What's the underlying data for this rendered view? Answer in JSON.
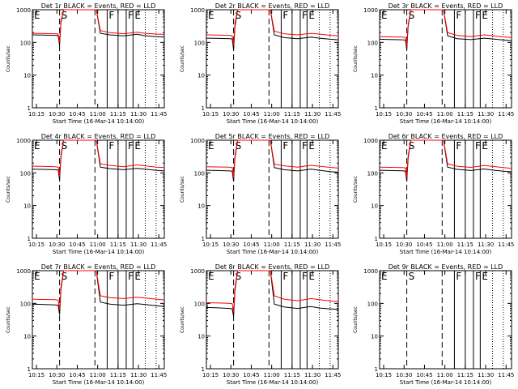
{
  "figure": {
    "ylabel": "Counts/sec",
    "xlabel": "Start Time (16-Mar-14 10:14:00)"
  },
  "time_axis": {
    "xlim": [
      13,
      110
    ],
    "tick_minutes": [
      16,
      31,
      46,
      61,
      76,
      91,
      106
    ],
    "tick_labels": [
      "10:15",
      "10:30",
      "10:45",
      "11:00",
      "11:15",
      "11:30",
      "11:45"
    ]
  },
  "log_axis": {
    "ylim": [
      1,
      1000
    ],
    "tick_values": [
      1,
      10,
      100,
      1000
    ],
    "tick_labels": [
      "1",
      "10",
      "100",
      "1000"
    ]
  },
  "markers": [
    {
      "label": "E",
      "t": 13,
      "style": "dotted"
    },
    {
      "label": "S",
      "t": 33,
      "style": "dashed"
    },
    {
      "label": "",
      "t": 59,
      "style": "dashed"
    },
    {
      "label": "F",
      "t": 68,
      "style": "solid"
    },
    {
      "label": "",
      "t": 76,
      "style": "solid"
    },
    {
      "label": "F",
      "t": 82,
      "style": "solid"
    },
    {
      "label": "E",
      "t": 87,
      "style": "solid"
    },
    {
      "label": "",
      "t": 96,
      "style": "dotted"
    },
    {
      "label": "",
      "t": 104,
      "style": "dotted"
    }
  ],
  "colors": {
    "events": "#000000",
    "lld": "#ff0000"
  },
  "chart_data": [
    {
      "type": "line",
      "title": "Det 1r BLACK = Events, RED = LLD",
      "xlabel": "Start Time (16-Mar-14 10:14:00)",
      "ylabel": "Counts/sec",
      "yscale": "log",
      "ylim": [
        1,
        1000
      ],
      "series": [
        {
          "name": "Events",
          "x": [
            13,
            20,
            30,
            32,
            33,
            34,
            36,
            60,
            63,
            70,
            80,
            90,
            96,
            104,
            110
          ],
          "y": [
            170,
            168,
            165,
            160,
            80,
            400,
            1000,
            1000,
            190,
            170,
            158,
            178,
            160,
            150,
            145
          ]
        },
        {
          "name": "LLD",
          "x": [
            13,
            20,
            30,
            32,
            33,
            34,
            36,
            60,
            63,
            70,
            80,
            90,
            96,
            104,
            110
          ],
          "y": [
            190,
            188,
            185,
            180,
            100,
            450,
            1000,
            1000,
            230,
            200,
            185,
            205,
            190,
            180,
            175
          ]
        }
      ]
    },
    {
      "type": "line",
      "title": "Det 2r BLACK = Events, RED = LLD",
      "xlabel": "Start Time (16-Mar-14 10:14:00)",
      "ylabel": "Counts/sec",
      "yscale": "log",
      "ylim": [
        1,
        1000
      ],
      "series": [
        {
          "name": "Events",
          "x": [
            13,
            20,
            30,
            32,
            33,
            34,
            36,
            60,
            63,
            70,
            80,
            90,
            96,
            104,
            110
          ],
          "y": [
            135,
            133,
            130,
            128,
            60,
            300,
            1000,
            1000,
            170,
            140,
            130,
            145,
            135,
            125,
            120
          ]
        },
        {
          "name": "LLD",
          "x": [
            13,
            20,
            30,
            32,
            33,
            34,
            36,
            60,
            63,
            70,
            80,
            90,
            96,
            104,
            110
          ],
          "y": [
            170,
            168,
            165,
            160,
            80,
            380,
            1000,
            1000,
            220,
            185,
            170,
            190,
            180,
            165,
            160
          ]
        }
      ]
    },
    {
      "type": "line",
      "title": "Det 3r BLACK = Events, RED = LLD",
      "xlabel": "Start Time (16-Mar-14 10:14:00)",
      "ylabel": "Counts/sec",
      "yscale": "log",
      "ylim": [
        1,
        1000
      ],
      "series": [
        {
          "name": "Events",
          "x": [
            13,
            20,
            30,
            32,
            33,
            34,
            36,
            60,
            63,
            70,
            80,
            90,
            96,
            104,
            110
          ],
          "y": [
            125,
            123,
            120,
            118,
            60,
            320,
            1000,
            1000,
            160,
            130,
            122,
            135,
            128,
            118,
            112
          ]
        },
        {
          "name": "LLD",
          "x": [
            13,
            20,
            30,
            32,
            33,
            34,
            36,
            60,
            63,
            70,
            80,
            90,
            96,
            104,
            110
          ],
          "y": [
            150,
            148,
            145,
            140,
            75,
            360,
            1000,
            1000,
            200,
            165,
            150,
            170,
            160,
            148,
            140
          ]
        }
      ]
    },
    {
      "type": "line",
      "title": "Det 4r BLACK = Events, RED = LLD",
      "xlabel": "Start Time (16-Mar-14 10:14:00)",
      "ylabel": "Counts/sec",
      "yscale": "log",
      "ylim": [
        1,
        1000
      ],
      "series": [
        {
          "name": "Events",
          "x": [
            13,
            20,
            30,
            32,
            33,
            34,
            36,
            60,
            63,
            70,
            80,
            90,
            96,
            104,
            110
          ],
          "y": [
            130,
            128,
            125,
            122,
            60,
            300,
            1000,
            1000,
            150,
            135,
            125,
            138,
            130,
            120,
            115
          ]
        },
        {
          "name": "LLD",
          "x": [
            13,
            20,
            30,
            32,
            33,
            34,
            36,
            60,
            63,
            70,
            80,
            90,
            96,
            104,
            110
          ],
          "y": [
            160,
            158,
            155,
            150,
            75,
            350,
            1000,
            1000,
            190,
            170,
            155,
            175,
            165,
            150,
            145
          ]
        }
      ]
    },
    {
      "type": "line",
      "title": "Det 5r BLACK = Events, RED = LLD",
      "xlabel": "Start Time (16-Mar-14 10:14:00)",
      "ylabel": "Counts/sec",
      "yscale": "log",
      "ylim": [
        1,
        1000
      ],
      "series": [
        {
          "name": "Events",
          "x": [
            13,
            20,
            30,
            32,
            33,
            34,
            36,
            60,
            63,
            70,
            80,
            90,
            96,
            104,
            110
          ],
          "y": [
            120,
            118,
            115,
            112,
            55,
            290,
            1000,
            1000,
            145,
            125,
            115,
            130,
            120,
            110,
            105
          ]
        },
        {
          "name": "LLD",
          "x": [
            13,
            20,
            30,
            32,
            33,
            34,
            36,
            60,
            63,
            70,
            80,
            90,
            96,
            104,
            110
          ],
          "y": [
            155,
            152,
            150,
            145,
            70,
            340,
            1000,
            1000,
            185,
            165,
            150,
            170,
            160,
            148,
            140
          ]
        }
      ]
    },
    {
      "type": "line",
      "title": "Det 6r BLACK = Events, RED = LLD",
      "xlabel": "Start Time (16-Mar-14 10:14:00)",
      "ylabel": "Counts/sec",
      "yscale": "log",
      "ylim": [
        1,
        1000
      ],
      "series": [
        {
          "name": "Events",
          "x": [
            13,
            20,
            30,
            32,
            33,
            34,
            36,
            60,
            63,
            70,
            80,
            90,
            96,
            104,
            110
          ],
          "y": [
            120,
            118,
            116,
            113,
            55,
            290,
            1000,
            1000,
            150,
            128,
            118,
            132,
            122,
            112,
            108
          ]
        },
        {
          "name": "LLD",
          "x": [
            13,
            20,
            30,
            32,
            33,
            34,
            36,
            60,
            63,
            70,
            80,
            90,
            96,
            104,
            110
          ],
          "y": [
            150,
            148,
            145,
            142,
            70,
            340,
            1000,
            1000,
            190,
            160,
            148,
            168,
            158,
            145,
            138
          ]
        }
      ]
    },
    {
      "type": "line",
      "title": "Det 7r BLACK = Events, RED = LLD",
      "xlabel": "Start Time (16-Mar-14 10:14:00)",
      "ylabel": "Counts/sec",
      "yscale": "log",
      "ylim": [
        1,
        1000
      ],
      "series": [
        {
          "name": "Events",
          "x": [
            13,
            20,
            30,
            32,
            33,
            34,
            36,
            60,
            63,
            70,
            80,
            90,
            96,
            104,
            110
          ],
          "y": [
            95,
            93,
            90,
            88,
            45,
            260,
            1000,
            1000,
            110,
            95,
            88,
            98,
            92,
            85,
            80
          ]
        },
        {
          "name": "LLD",
          "x": [
            13,
            20,
            30,
            32,
            33,
            34,
            36,
            60,
            63,
            70,
            80,
            90,
            96,
            104,
            110
          ],
          "y": [
            135,
            132,
            130,
            125,
            65,
            320,
            1000,
            1000,
            170,
            150,
            140,
            155,
            145,
            135,
            128
          ]
        }
      ]
    },
    {
      "type": "line",
      "title": "Det 8r BLACK = Events, RED = LLD",
      "xlabel": "Start Time (16-Mar-14 10:14:00)",
      "ylabel": "Counts/sec",
      "yscale": "log",
      "ylim": [
        1,
        1000
      ],
      "series": [
        {
          "name": "Events",
          "x": [
            13,
            20,
            30,
            32,
            33,
            34,
            36,
            60,
            63,
            70,
            80,
            90,
            96,
            104,
            110
          ],
          "y": [
            75,
            73,
            70,
            68,
            40,
            240,
            1000,
            1000,
            95,
            78,
            70,
            80,
            72,
            68,
            65
          ]
        },
        {
          "name": "LLD",
          "x": [
            13,
            20,
            30,
            32,
            33,
            34,
            36,
            60,
            63,
            70,
            80,
            90,
            96,
            104,
            110
          ],
          "y": [
            105,
            103,
            100,
            98,
            55,
            300,
            1000,
            1000,
            170,
            135,
            120,
            140,
            130,
            118,
            112
          ]
        }
      ]
    },
    {
      "type": "line",
      "title": "Det 9r BLACK = Events, RED = LLD",
      "xlabel": "Start Time (16-Mar-14 10:14:00)",
      "ylabel": "Counts/sec",
      "yscale": "log",
      "ylim": [
        1,
        1000
      ],
      "series": []
    }
  ]
}
